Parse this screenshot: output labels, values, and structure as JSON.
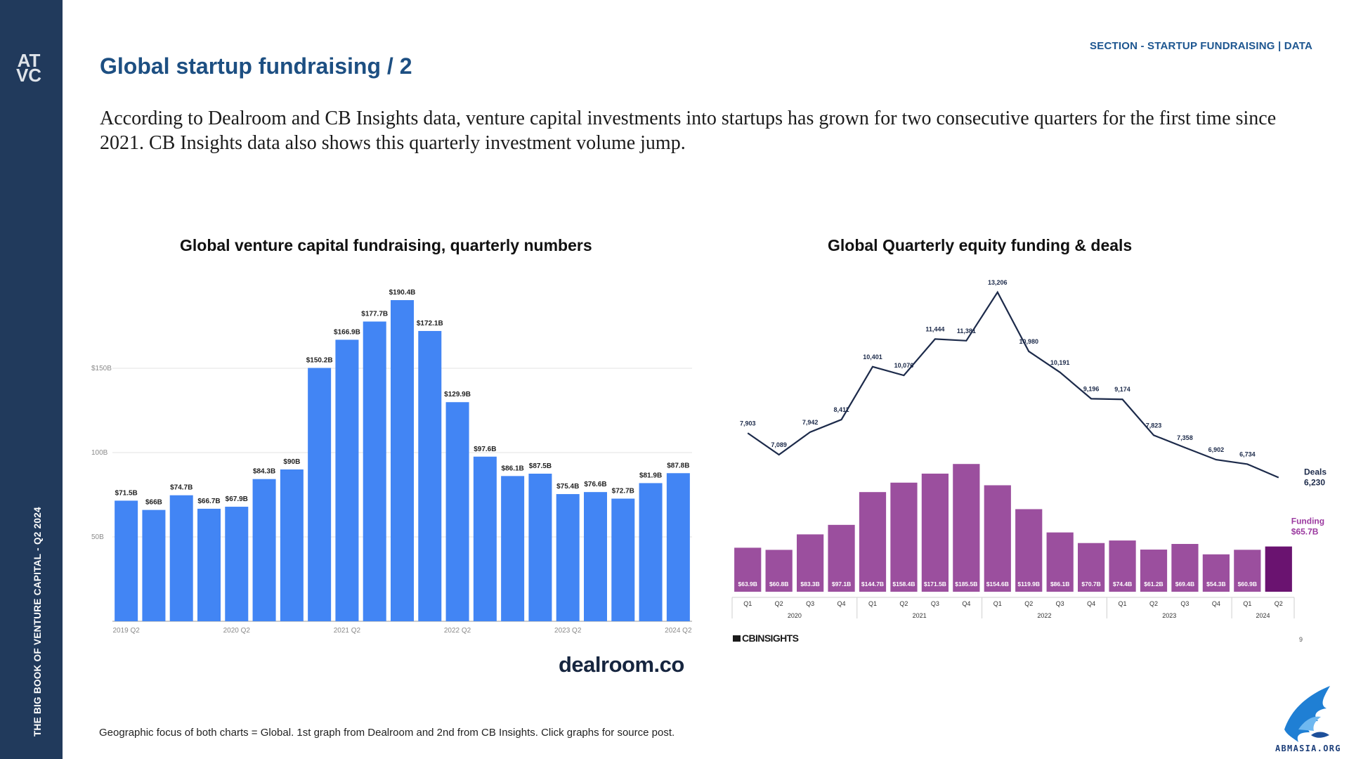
{
  "sidebar": {
    "logo_text": "ATVC",
    "vertical_text": "THE BIG BOOK OF VENTURE CAPITAL - Q2 2024",
    "color": "#213a5c"
  },
  "header": {
    "section_label": "SECTION - STARTUP FUNDRAISING | DATA",
    "title": "Global startup fundraising / 2"
  },
  "intro_text": "According to Dealroom and CB Insights data, venture capital investments into startups has grown for two consecutive quarters for the first time since 2021. CB Insights data also shows this quarterly investment volume jump.",
  "footnote": "Geographic focus of both charts = Global. 1st graph from Dealroom and 2nd from CB Insights. Click graphs for source post.",
  "brands": {
    "dealroom": "dealroom.co",
    "cbinsights": "CBINSIGHTS",
    "cb_page_number": "9",
    "abm_logo_text": "ABMASIA.ORG"
  },
  "colors": {
    "dealroom_bar": "#4285f4",
    "cb_bar": "#9b4f9e",
    "cb_bar_latest": "#6a1370",
    "cb_line": "#1c2a4a",
    "title_blue": "#1d4f82"
  },
  "chart_data": [
    {
      "type": "bar",
      "title": "Global venture capital fundraising, quarterly numbers",
      "categories": [
        "2019 Q2",
        "2019 Q3",
        "2019 Q4",
        "2020 Q1",
        "2020 Q2",
        "2020 Q3",
        "2020 Q4",
        "2021 Q1",
        "2021 Q2",
        "2021 Q3",
        "2021 Q4",
        "2022 Q1",
        "2022 Q2",
        "2022 Q3",
        "2022 Q4",
        "2023 Q1",
        "2023 Q2",
        "2023 Q3",
        "2023 Q4",
        "2024 Q1",
        "2024 Q2"
      ],
      "x_tick_labels": [
        "2019 Q2",
        "2020 Q2",
        "2021 Q2",
        "2022 Q2",
        "2023 Q2",
        "2024 Q2"
      ],
      "values": [
        71.5,
        66,
        74.7,
        66.7,
        67.9,
        84.3,
        90,
        150.2,
        166.9,
        177.7,
        190.4,
        172.1,
        129.9,
        97.6,
        86.1,
        87.5,
        75.4,
        76.6,
        72.7,
        81.9,
        87.8
      ],
      "value_labels": [
        "$71.5B",
        "$66B",
        "$74.7B",
        "$66.7B",
        "$67.9B",
        "$84.3B",
        "$90B",
        "$150.2B",
        "$166.9B",
        "$177.7B",
        "$190.4B",
        "$172.1B",
        "$129.9B",
        "$97.6B",
        "$86.1B",
        "$87.5B",
        "$75.4B",
        "$76.6B",
        "$72.7B",
        "$81.9B",
        "$87.8B"
      ],
      "y_ticks": [
        50,
        100,
        150
      ],
      "y_tick_labels": [
        "50B",
        "100B",
        "$150B"
      ],
      "ylim": [
        0,
        200
      ],
      "grid": true
    },
    {
      "type": "bar",
      "title": "Global Quarterly equity funding & deals",
      "categories": [
        "2020 Q1",
        "2020 Q2",
        "2020 Q3",
        "2020 Q4",
        "2021 Q1",
        "2021 Q2",
        "2021 Q3",
        "2021 Q4",
        "2022 Q1",
        "2022 Q2",
        "2022 Q3",
        "2022 Q4",
        "2023 Q1",
        "2023 Q2",
        "2023 Q3",
        "2023 Q4",
        "2024 Q1",
        "2024 Q2"
      ],
      "quarter_labels": [
        "Q1",
        "Q2",
        "Q3",
        "Q4",
        "Q1",
        "Q2",
        "Q3",
        "Q4",
        "Q1",
        "Q2",
        "Q3",
        "Q4",
        "Q1",
        "Q2",
        "Q3",
        "Q4",
        "Q1",
        "Q2"
      ],
      "year_labels": [
        "2020",
        "2021",
        "2022",
        "2023",
        "2024"
      ],
      "series": [
        {
          "name": "Funding",
          "type": "bar",
          "values": [
            63.9,
            60.8,
            83.3,
            97.1,
            144.7,
            158.4,
            171.5,
            185.5,
            154.6,
            119.9,
            86.1,
            70.7,
            74.4,
            61.2,
            69.4,
            54.3,
            60.9,
            65.7
          ],
          "value_labels": [
            "$63.9B",
            "$60.8B",
            "$83.3B",
            "$97.1B",
            "$144.7B",
            "$158.4B",
            "$171.5B",
            "$185.5B",
            "$154.6B",
            "$119.9B",
            "$86.1B",
            "$70.7B",
            "$74.4B",
            "$61.2B",
            "$69.4B",
            "$54.3B",
            "$60.9B"
          ]
        },
        {
          "name": "Deals",
          "type": "line",
          "values": [
            7903,
            7089,
            7942,
            8411,
            10401,
            10076,
            11444,
            11381,
            13206,
            10980,
            10191,
            9196,
            9174,
            7823,
            7358,
            6902,
            6734,
            6230
          ],
          "value_labels": [
            "7,903",
            "7,089",
            "7,942",
            "8,411",
            "10,401",
            "10,076",
            "11,444",
            "11,381",
            "13,206",
            "10,980",
            "10,191",
            "9,196",
            "9,174",
            "7,823",
            "7,358",
            "6,902",
            "6,734"
          ]
        }
      ],
      "annotations": {
        "funding_label": "Funding",
        "funding_value": "$65.7B",
        "deals_label": "Deals",
        "deals_value": "6,230"
      }
    }
  ]
}
